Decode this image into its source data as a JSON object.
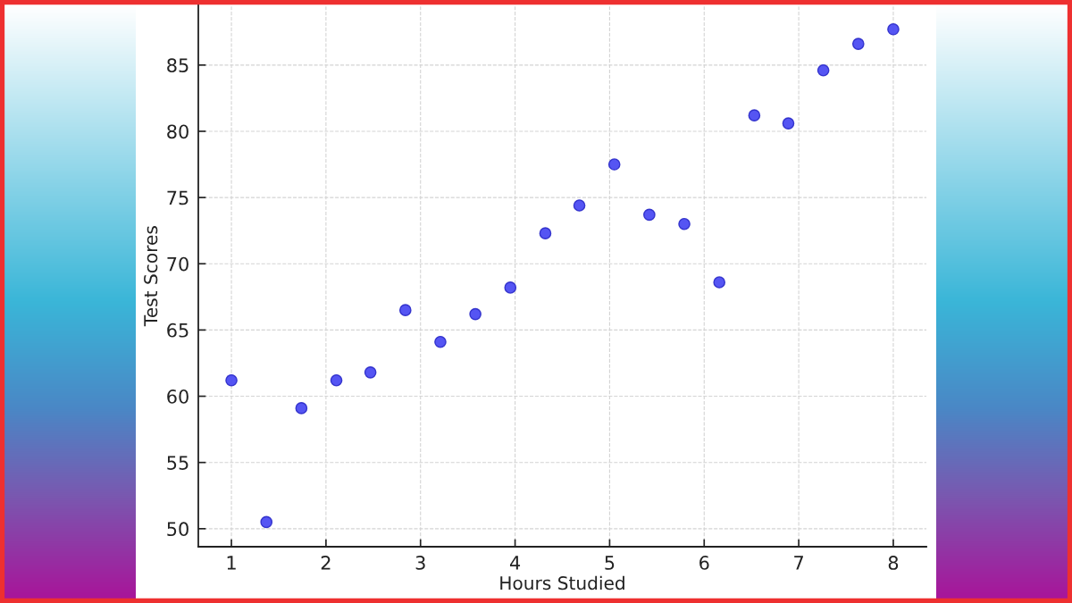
{
  "chart_data": {
    "type": "scatter",
    "xlabel": "Hours Studied",
    "ylabel": "Test Scores",
    "x": [
      1,
      1.37,
      1.74,
      2.11,
      2.47,
      2.84,
      3.21,
      3.58,
      3.95,
      4.32,
      4.68,
      5.05,
      5.42,
      5.79,
      6.16,
      6.53,
      6.89,
      7.26,
      7.63,
      8
    ],
    "values": [
      61.2,
      50.5,
      59.1,
      61.2,
      61.8,
      66.5,
      64.1,
      66.2,
      68.2,
      72.3,
      74.4,
      77.5,
      73.7,
      73.0,
      68.6,
      81.2,
      80.6,
      84.6,
      86.6,
      87.7
    ],
    "color": "#4343f2",
    "marker": "circle",
    "xlim": [
      0.65,
      8.35
    ],
    "ylim": [
      48.64,
      89.56
    ],
    "xticks": [
      1,
      2,
      3,
      4,
      5,
      6,
      7,
      8
    ],
    "yticks": [
      50,
      55,
      60,
      65,
      70,
      75,
      80,
      85
    ],
    "grid": true
  }
}
